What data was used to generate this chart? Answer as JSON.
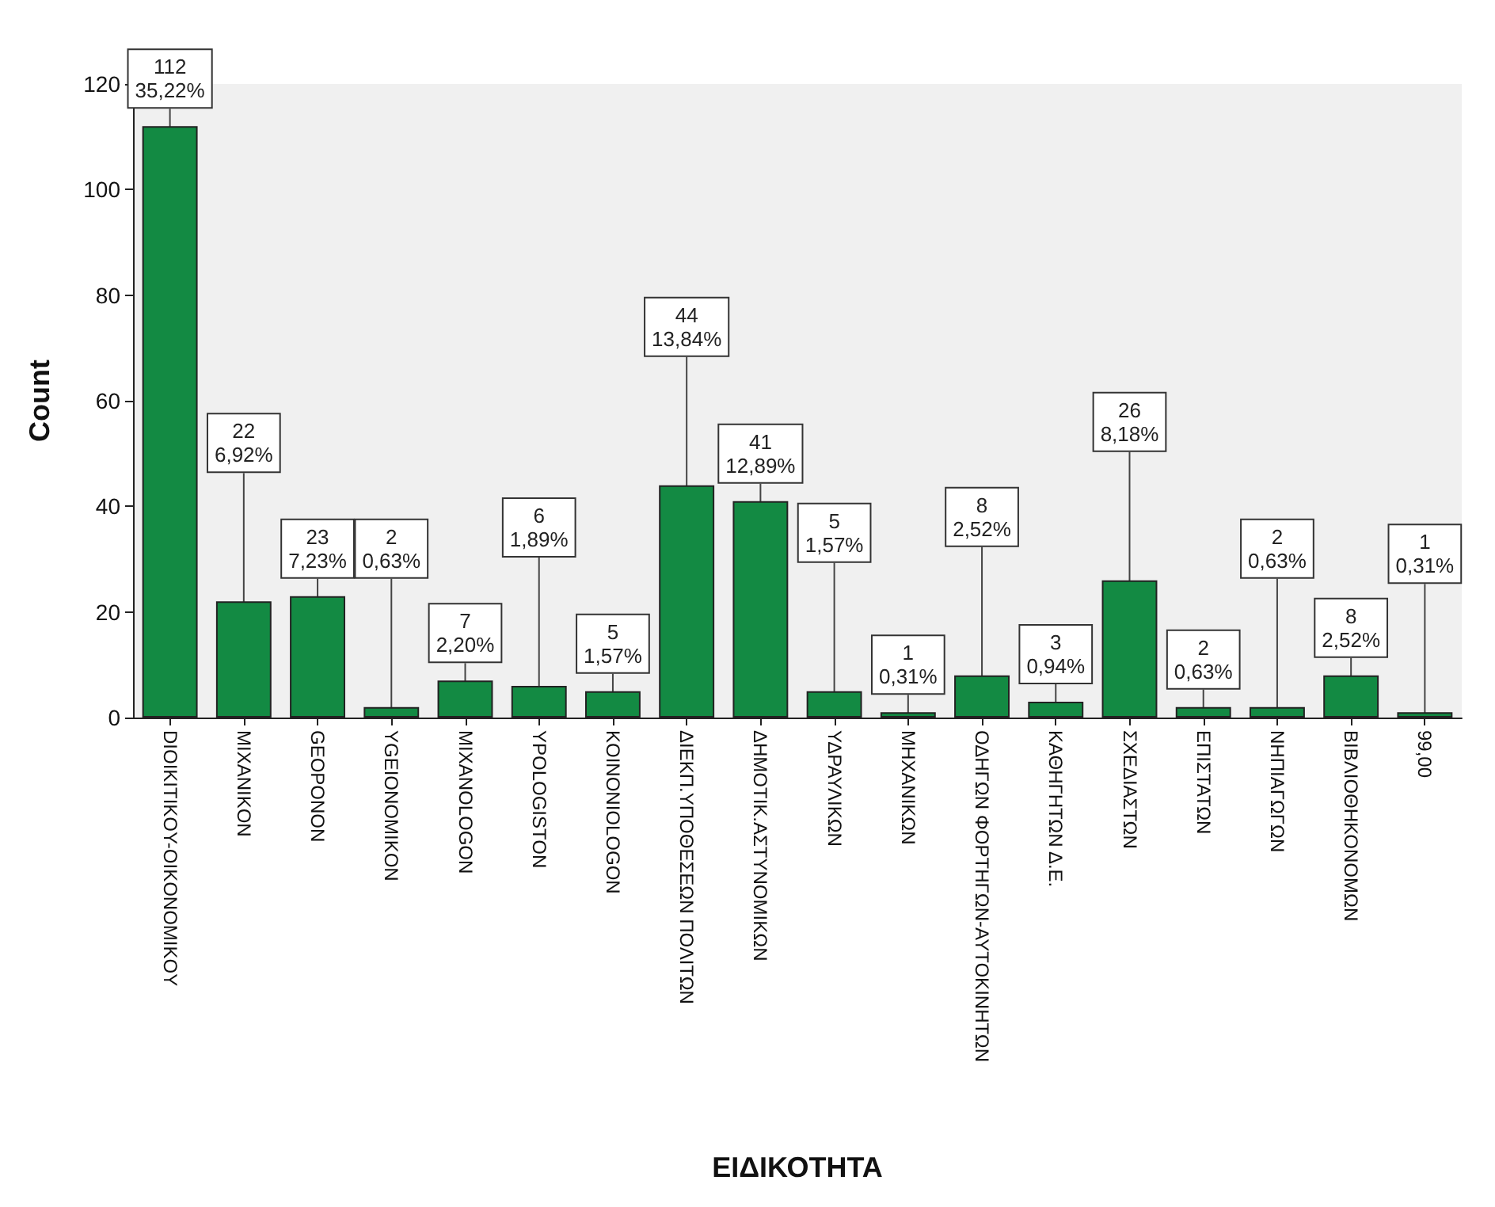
{
  "chart_data": {
    "type": "bar",
    "xlabel": "ΕΙΔΙΚΟΤΗΤΑ",
    "ylabel": "Count",
    "categories": [
      "DIOIKITIKOY-OIKONOMIKOY",
      "MIXANIKON",
      "GEOPONON",
      "YGEIONOMIKON",
      "MIXANOLOGON",
      "YPOLOGISTON",
      "KOINONIOLOGON",
      "ΔΙΕΚΠ.ΥΠΟΘΕΣΕΩΝ ΠΟΛΙΤΩΝ",
      "ΔΗΜΟΤΙΚ.ΑΣΤΥΝΟΜΙΚΩΝ",
      "ΥΔΡΑΥΛΙΚΩΝ",
      "ΜΗΧΑΝΙΚΩΝ",
      "ΟΔΗΓΩΝ ΦΟΡΤΗΓΩΝ-ΑΥΤΟΚΙΝΗΤΩΝ",
      "ΚΑΘΗΓΗΤΩΝ Δ.Ε.",
      "ΣΧΕΔΙΑΣΤΩΝ",
      "ΕΠΙΣΤΑΤΩΝ",
      "ΝΗΠΙΑΓΩΓΩΝ",
      "ΒΙΒΛΙΟΘΗΚΟΝΟΜΩΝ",
      "99,00"
    ],
    "values": [
      112,
      22,
      23,
      2,
      7,
      6,
      5,
      44,
      41,
      5,
      1,
      8,
      3,
      26,
      2,
      2,
      8,
      1
    ],
    "value_labels": [
      "112\n35,22%",
      "22\n6,92%",
      "23\n7,23%",
      "2\n0,63%",
      "7\n2,20%",
      "6\n1,89%",
      "5\n1,57%",
      "44\n13,84%",
      "41\n12,89%",
      "5\n1,57%",
      "1\n0,31%",
      "8\n2,52%",
      "3\n0,94%",
      "26\n8,18%",
      "2\n0,63%",
      "2\n0,63%",
      "8\n2,52%",
      "1\n0,31%"
    ],
    "color": "#138a43",
    "ylim": [
      0,
      120
    ],
    "yticks": [
      0,
      20,
      40,
      60,
      80,
      100,
      120
    ],
    "grid": false
  }
}
